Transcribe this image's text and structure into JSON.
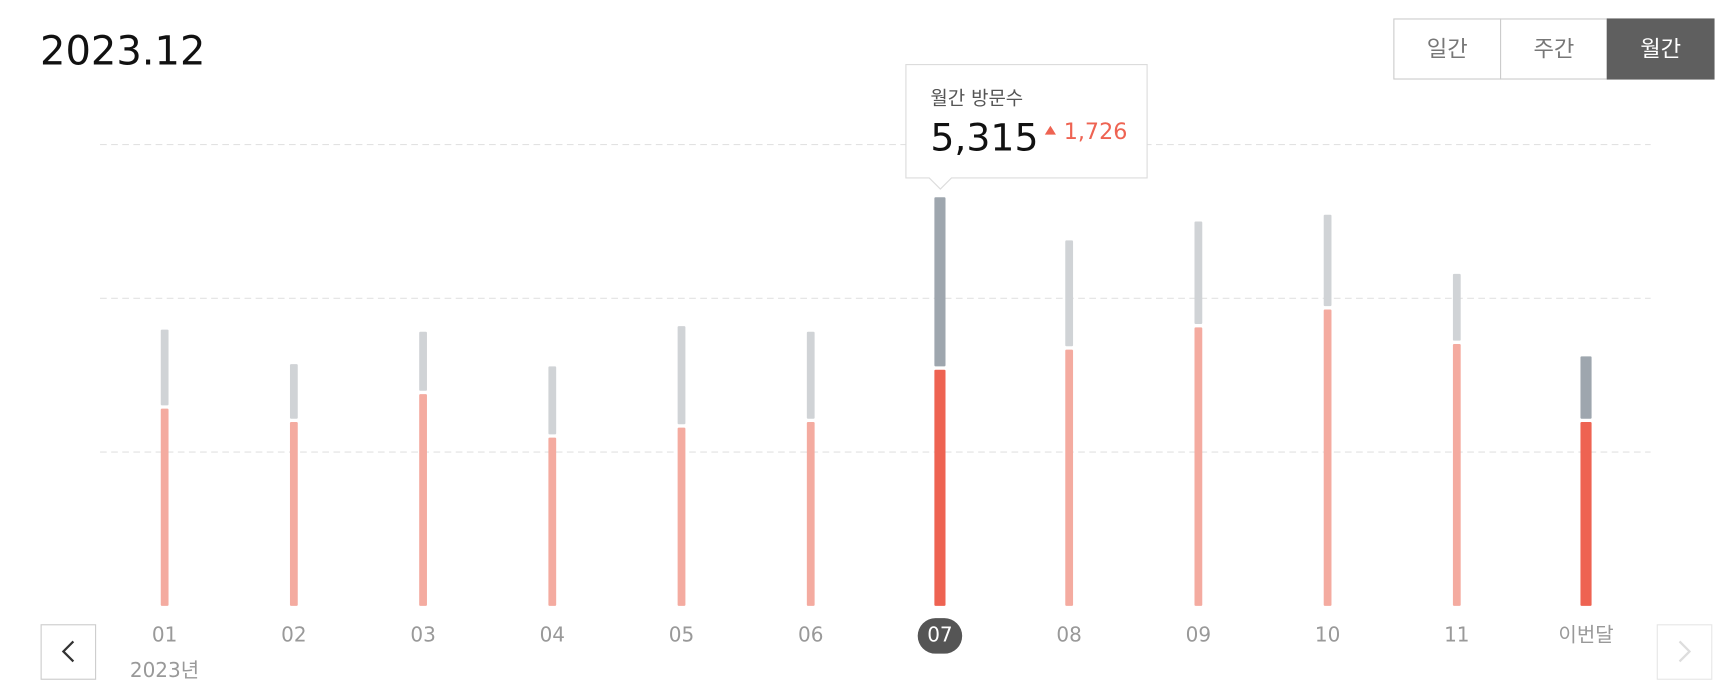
{
  "header": {
    "title": "2023.12",
    "tabs": [
      "일간",
      "주간",
      "월간"
    ],
    "active_tab": "월간"
  },
  "chart_data": {
    "type": "bar",
    "stacked": true,
    "categories": [
      "01",
      "02",
      "03",
      "04",
      "05",
      "06",
      "07",
      "08",
      "09",
      "10",
      "11",
      "이번달"
    ],
    "year_label": "2023년",
    "series": [
      {
        "color": "#f4aba0",
        "highlight_color": "#ee6352",
        "values": [
          2565,
          2391,
          2754,
          2188,
          2319,
          2391,
          3072,
          3333,
          3623,
          3855,
          3406,
          2391
        ]
      },
      {
        "color": "#d0d3d6",
        "highlight_color": "#9ea6ae",
        "values": [
          1029,
          754,
          811,
          928,
          1319,
          1174,
          2243,
          1421,
          1377,
          1232,
          913,
          855
        ]
      }
    ],
    "highlighted_categories": [
      "07",
      "이번달"
    ],
    "selected_category": "07",
    "ylim": [
      0,
      6000
    ],
    "yticks": [
      2000,
      4000,
      6000
    ],
    "grid": true,
    "tooltip": {
      "label": "월간 방문수",
      "value": 5315,
      "value_label": "5,315",
      "change": 1726,
      "change_label": "1,726"
    }
  }
}
